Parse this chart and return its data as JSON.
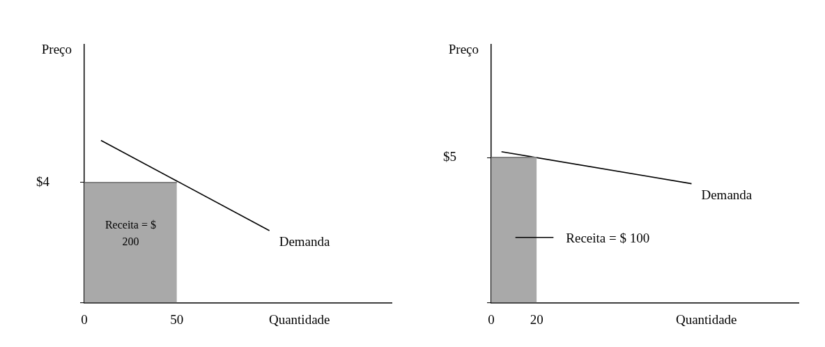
{
  "chart_data": [
    {
      "type": "line",
      "xlabel": "Quantidade",
      "ylabel": "Preço",
      "xlim": [
        0,
        166
      ],
      "ylim": [
        0,
        8.6
      ],
      "xticks": [
        0,
        50
      ],
      "yticks": [
        {
          "value": 0,
          "label": null
        },
        {
          "value": 4,
          "label": "$4"
        }
      ],
      "grid": false,
      "legend": false,
      "annotations": [
        "Receita = $ 200"
      ],
      "series": [
        {
          "type": "area",
          "color": "#a9a9a9",
          "x": [
            0,
            50
          ],
          "values": [
            4,
            4
          ]
        },
        {
          "name": "Demanda",
          "color": "#000000",
          "x": [
            9,
            100
          ],
          "values": [
            5.4,
            2.4
          ]
        }
      ]
    },
    {
      "type": "line",
      "xlabel": "Quantidade",
      "ylabel": "Preço",
      "xlim": [
        0,
        135
      ],
      "ylim": [
        0,
        8.9
      ],
      "xticks": [
        0,
        20
      ],
      "yticks": [
        {
          "value": 0,
          "label": null
        },
        {
          "value": 5,
          "label": "$5"
        }
      ],
      "grid": false,
      "legend": false,
      "annotations": [
        "Receita = $ 100"
      ],
      "series": [
        {
          "type": "area",
          "color": "#a9a9a9",
          "x": [
            0,
            20
          ],
          "values": [
            5,
            5
          ]
        },
        {
          "name": "Demanda",
          "color": "#000000",
          "x": [
            4.5,
            88
          ],
          "values": [
            5.2,
            4.1
          ]
        }
      ]
    }
  ]
}
